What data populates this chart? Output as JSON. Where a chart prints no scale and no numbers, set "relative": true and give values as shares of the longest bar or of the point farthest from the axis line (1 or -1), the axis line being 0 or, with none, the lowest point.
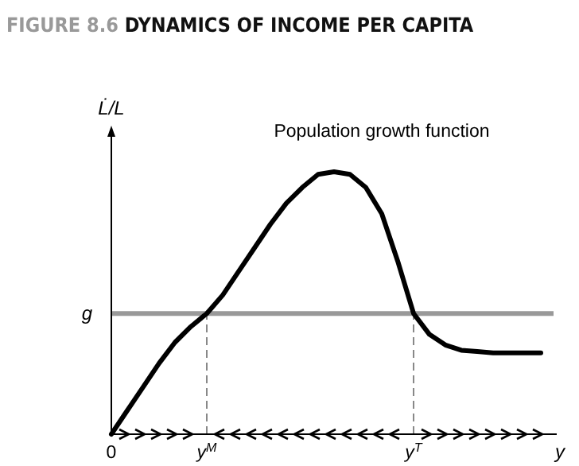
{
  "chart_data": {
    "type": "line",
    "title": "FIGURE 8.6 DYNAMICS OF INCOME PER CAPITA",
    "xlabel": "y",
    "ylabel": "L̇/L",
    "relative": true,
    "categories": [
      "0",
      null,
      null,
      null,
      null,
      null,
      "y$^{M}$",
      null,
      null,
      null,
      null,
      null,
      null,
      null,
      null,
      null,
      null,
      null,
      null,
      "y$^{T}$",
      null,
      null,
      null,
      null,
      null,
      null,
      null,
      null
    ],
    "series": [
      {
        "name": "Population growth function",
        "color": "#000000",
        "values": [
          0,
          0.09,
          0.18,
          0.27,
          0.35,
          0.41,
          0.46,
          0.53,
          0.62,
          0.71,
          0.8,
          0.88,
          0.94,
          0.99,
          1,
          0.99,
          0.94,
          0.84,
          0.66,
          0.46,
          0.38,
          0.34,
          0.32,
          0.315,
          0.31,
          0.31,
          0.31,
          0.31
        ]
      }
    ],
    "ref_lines": [
      {
        "axis": "y",
        "value": 0.46,
        "label": "g",
        "color": "#999999",
        "line_style": "solid"
      },
      {
        "axis": "x",
        "value": "y$^{M}$",
        "color": "#888888",
        "line_style": "dashed"
      },
      {
        "axis": "x",
        "value": "y$^{T}$",
        "color": "#888888",
        "line_style": "dashed"
      }
    ],
    "marker": "none",
    "line_style": "solid",
    "grid": false
  }
}
